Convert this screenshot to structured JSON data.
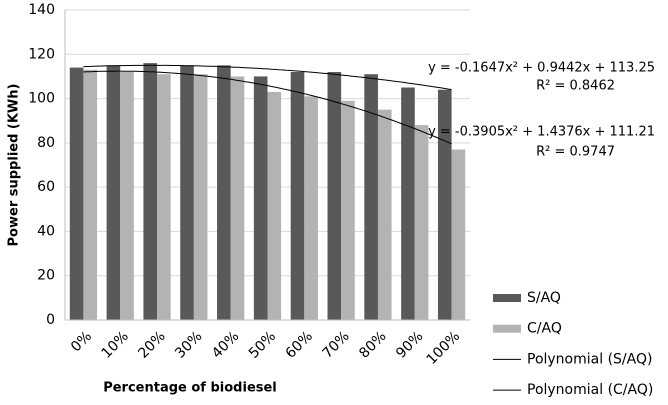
{
  "chart_data": {
    "type": "bar",
    "x_label": "Percentage of biodiesel",
    "y_label": "Power supplied (KWh)",
    "categories": [
      "0%",
      "10%",
      "20%",
      "30%",
      "40%",
      "50%",
      "60%",
      "70%",
      "80%",
      "90%",
      "100%"
    ],
    "series": [
      {
        "name": "S/AQ",
        "color": "#595959",
        "values": [
          114,
          115,
          116,
          115,
          115,
          110,
          112,
          112,
          111,
          105,
          104
        ]
      },
      {
        "name": "C/AQ",
        "color": "#b3b3b3",
        "values": [
          113,
          112,
          111,
          111,
          110,
          103,
          101,
          99,
          95,
          88,
          77
        ]
      }
    ],
    "trendlines": [
      {
        "name": "Polynomial (S/AQ)",
        "series": 0,
        "color": "#000000",
        "equation": "y = -0.1647x² + 0.9442x + 113.25",
        "r2": "R² = 0.8462"
      },
      {
        "name": "Polynomial (C/AQ)",
        "series": 1,
        "color": "#000000",
        "equation": "y = -0.3905x² + 1.4376x + 111.21",
        "r2": "R² = 0.9747"
      }
    ],
    "ylim": [
      0,
      140
    ],
    "yticks": [
      0,
      20,
      40,
      60,
      80,
      100,
      120,
      140
    ],
    "grid": true,
    "legend": "right"
  }
}
